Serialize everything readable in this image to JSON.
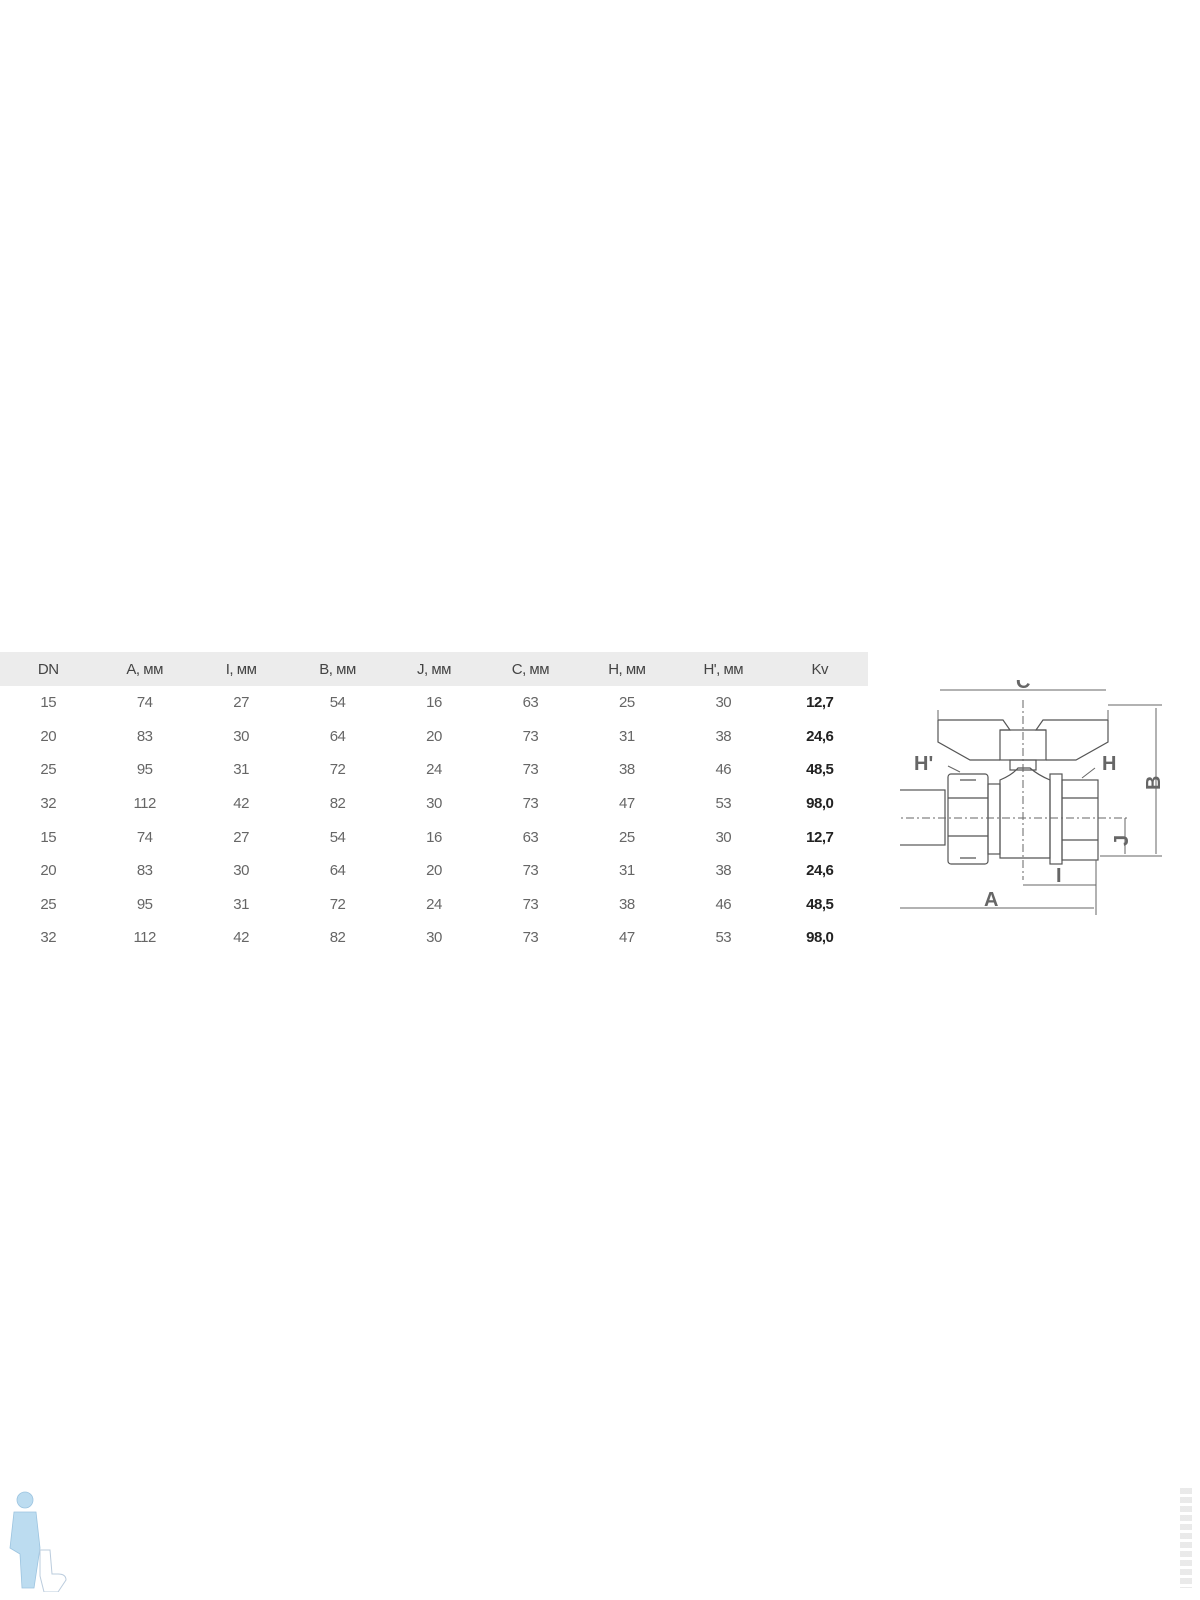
{
  "table": {
    "headers": [
      "DN",
      "A, мм",
      "I, мм",
      "B, мм",
      "J, мм",
      "C, мм",
      "H, мм",
      "H', мм",
      "Kv"
    ],
    "rows": [
      [
        "15",
        "74",
        "27",
        "54",
        "16",
        "63",
        "25",
        "30",
        "12,7"
      ],
      [
        "20",
        "83",
        "30",
        "64",
        "20",
        "73",
        "31",
        "38",
        "24,6"
      ],
      [
        "25",
        "95",
        "31",
        "72",
        "24",
        "73",
        "38",
        "46",
        "48,5"
      ],
      [
        "32",
        "112",
        "42",
        "82",
        "30",
        "73",
        "47",
        "53",
        "98,0"
      ],
      [
        "15",
        "74",
        "27",
        "54",
        "16",
        "63",
        "25",
        "30",
        "12,7"
      ],
      [
        "20",
        "83",
        "30",
        "64",
        "20",
        "73",
        "31",
        "38",
        "24,6"
      ],
      [
        "25",
        "95",
        "31",
        "72",
        "24",
        "73",
        "38",
        "46",
        "48,5"
      ],
      [
        "32",
        "112",
        "42",
        "82",
        "30",
        "73",
        "47",
        "53",
        "98,0"
      ]
    ]
  },
  "diagram": {
    "labels": {
      "c": "C",
      "b": "B",
      "h_prime": "H'",
      "h": "H",
      "j": "J",
      "i": "I",
      "a": "A"
    }
  },
  "colors": {
    "header_bg": "#ececec",
    "mascot": "#bcdcf0",
    "line": "#555555"
  }
}
